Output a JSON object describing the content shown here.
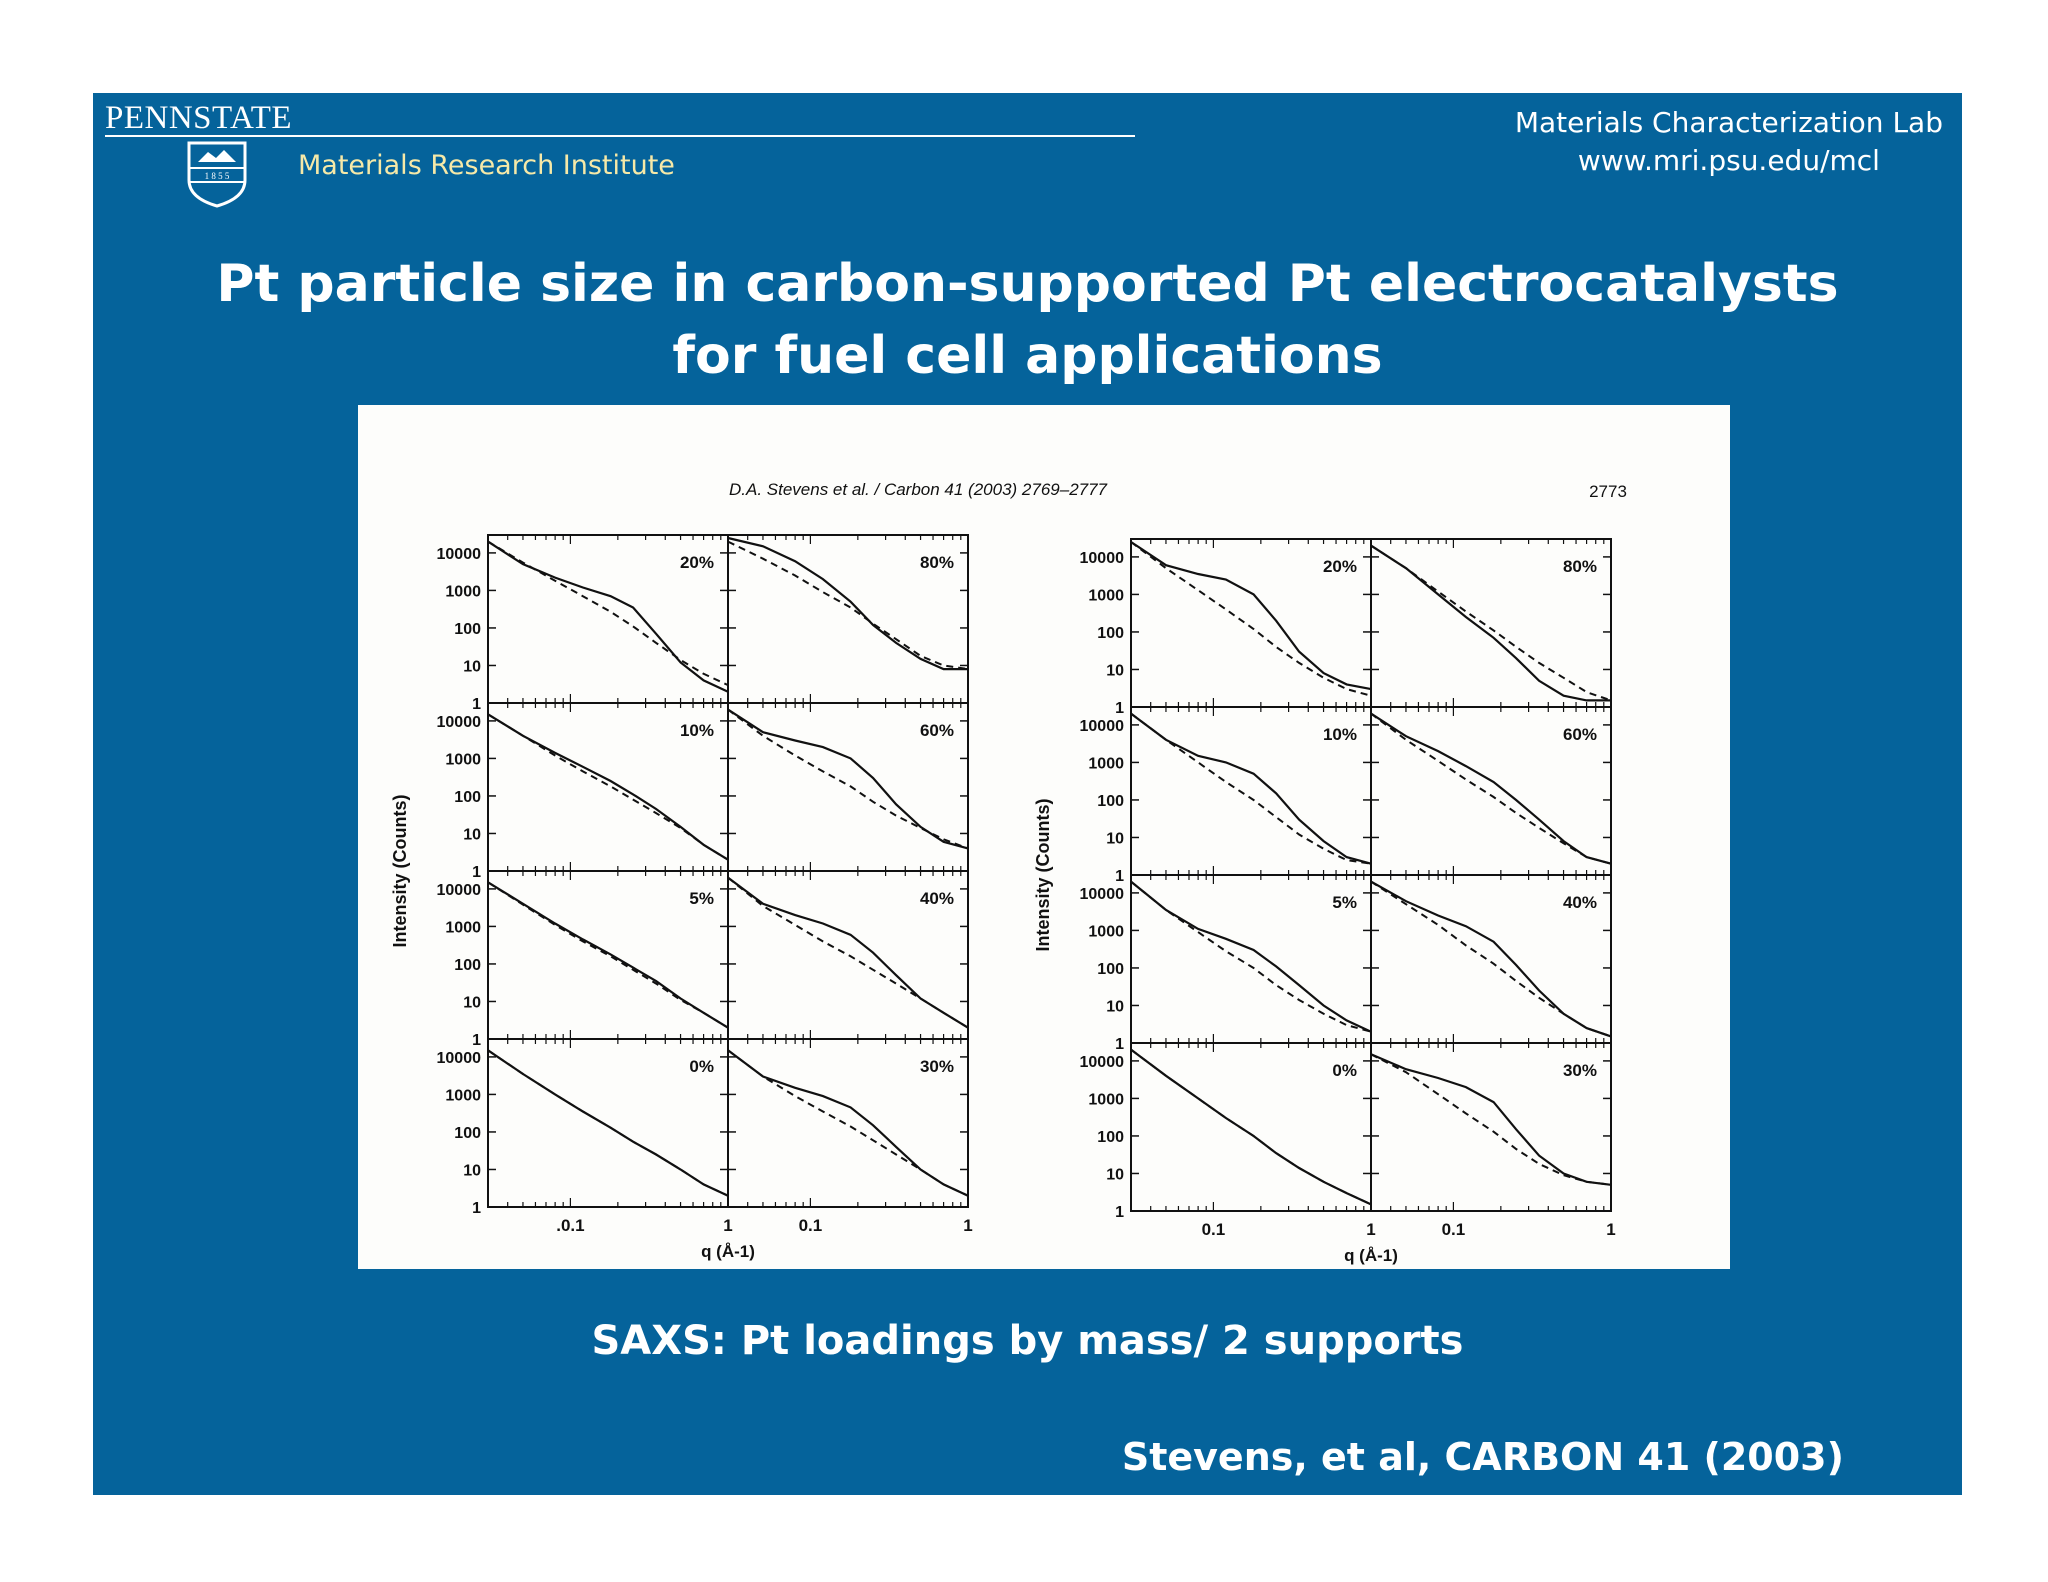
{
  "header": {
    "brand": "PENNSTATE",
    "shield_year": "1 8 5 5",
    "institute": "Materials Research Institute",
    "lab_name": "Materials Characterization Lab",
    "lab_url": "www.mri.psu.edu/mcl"
  },
  "slide": {
    "title_line1": "Pt particle size in carbon-supported Pt electrocatalysts",
    "title_line2": "for fuel cell applications",
    "caption": "SAXS: Pt loadings by mass/ 2 supports",
    "citation": "Stevens, et al, CARBON 41 (2003)"
  },
  "colors": {
    "slide_bg": "#05639b",
    "institute_text": "#f6e9a8"
  },
  "figure": {
    "header_citation": "D.A. Stevens et al. / Carbon 41 (2003) 2769–2777",
    "page_number": "2773"
  },
  "chart_data": [
    {
      "type": "line",
      "panel_group": "left figure (support 1)",
      "ylabel": "Intensity (Counts)",
      "xlabel": "q (Å-1)",
      "x_scale": "log",
      "y_scale": "log",
      "xlim": [
        0.03,
        1
      ],
      "ylim": [
        1,
        30000
      ],
      "y_ticks": [
        "10000",
        "1000",
        "100",
        "10",
        "1"
      ],
      "x_ticks": [
        ".0.1",
        "1"
      ],
      "x_ticks_right": [
        "0.1",
        "1"
      ],
      "panels": [
        {
          "label": "20%",
          "row": 0,
          "col": 0,
          "x": [
            0.03,
            0.05,
            0.08,
            0.12,
            0.18,
            0.25,
            0.35,
            0.5,
            0.7,
            1.0
          ],
          "solid": [
            20000,
            5000,
            2200,
            1200,
            700,
            350,
            70,
            12,
            4,
            2
          ],
          "dashed": [
            20000,
            5500,
            1800,
            700,
            270,
            110,
            40,
            14,
            6,
            3
          ]
        },
        {
          "label": "80%",
          "row": 0,
          "col": 1,
          "x": [
            0.03,
            0.05,
            0.08,
            0.12,
            0.18,
            0.25,
            0.35,
            0.5,
            0.7,
            1.0
          ],
          "solid": [
            25000,
            15000,
            6000,
            2000,
            500,
            120,
            40,
            15,
            8,
            8
          ],
          "dashed": [
            20000,
            7000,
            2500,
            900,
            350,
            130,
            50,
            18,
            10,
            8
          ]
        },
        {
          "label": "10%",
          "row": 1,
          "col": 0,
          "x": [
            0.03,
            0.05,
            0.08,
            0.12,
            0.18,
            0.25,
            0.35,
            0.5,
            0.7,
            1.0
          ],
          "solid": [
            15000,
            4000,
            1400,
            600,
            250,
            110,
            45,
            15,
            5,
            2
          ],
          "dashed": [
            15000,
            4000,
            1200,
            450,
            180,
            80,
            35,
            14,
            5,
            2
          ]
        },
        {
          "label": "60%",
          "row": 1,
          "col": 1,
          "x": [
            0.03,
            0.05,
            0.08,
            0.12,
            0.18,
            0.25,
            0.35,
            0.5,
            0.7,
            1.0
          ],
          "solid": [
            20000,
            5000,
            3000,
            2000,
            1000,
            300,
            60,
            15,
            6,
            4
          ],
          "dashed": [
            20000,
            4000,
            1200,
            450,
            180,
            70,
            30,
            14,
            7,
            4
          ]
        },
        {
          "label": "5%",
          "row": 2,
          "col": 0,
          "x": [
            0.03,
            0.05,
            0.08,
            0.12,
            0.18,
            0.25,
            0.35,
            0.5,
            0.7,
            1.0
          ],
          "solid": [
            15000,
            4000,
            1200,
            450,
            180,
            80,
            35,
            12,
            5,
            2
          ],
          "dashed": [
            15000,
            3800,
            1100,
            400,
            160,
            70,
            30,
            11,
            5,
            2
          ]
        },
        {
          "label": "40%",
          "row": 2,
          "col": 1,
          "x": [
            0.03,
            0.05,
            0.08,
            0.12,
            0.18,
            0.25,
            0.35,
            0.5,
            0.7,
            1.0
          ],
          "solid": [
            20000,
            4000,
            2000,
            1200,
            600,
            200,
            50,
            12,
            5,
            2
          ],
          "dashed": [
            20000,
            3500,
            1100,
            400,
            160,
            70,
            30,
            12,
            5,
            2
          ]
        },
        {
          "label": "0%",
          "row": 3,
          "col": 0,
          "x": [
            0.03,
            0.05,
            0.08,
            0.12,
            0.18,
            0.25,
            0.35,
            0.5,
            0.7,
            1.0
          ],
          "solid": [
            15000,
            3500,
            1000,
            350,
            130,
            55,
            25,
            10,
            4,
            2
          ],
          "dashed": [
            15000,
            3500,
            1000,
            350,
            130,
            55,
            25,
            10,
            4,
            2
          ]
        },
        {
          "label": "30%",
          "row": 3,
          "col": 1,
          "x": [
            0.03,
            0.05,
            0.08,
            0.12,
            0.18,
            0.25,
            0.35,
            0.5,
            0.7,
            1.0
          ],
          "solid": [
            15000,
            3000,
            1500,
            900,
            450,
            150,
            40,
            10,
            4,
            2
          ],
          "dashed": [
            15000,
            3000,
            900,
            350,
            140,
            60,
            25,
            10,
            4,
            2
          ]
        }
      ]
    },
    {
      "type": "line",
      "panel_group": "right figure (support 2)",
      "ylabel": "Intensity (Counts)",
      "xlabel": "q (Å-1)",
      "x_scale": "log",
      "y_scale": "log",
      "xlim": [
        0.03,
        1
      ],
      "ylim": [
        1,
        30000
      ],
      "y_ticks": [
        "10000",
        "1000",
        "100",
        "10",
        "1"
      ],
      "x_ticks": [
        "0.1",
        "1"
      ],
      "x_ticks_right": [
        "0.1",
        "1"
      ],
      "panels": [
        {
          "label": "20%",
          "row": 0,
          "col": 0,
          "x": [
            0.03,
            0.05,
            0.08,
            0.12,
            0.18,
            0.25,
            0.35,
            0.5,
            0.7,
            1.0
          ],
          "solid": [
            25000,
            6000,
            3500,
            2500,
            1000,
            200,
            30,
            8,
            4,
            3
          ],
          "dashed": [
            25000,
            5000,
            1300,
            400,
            120,
            40,
            15,
            6,
            3,
            2
          ]
        },
        {
          "label": "80%",
          "row": 0,
          "col": 1,
          "x": [
            0.03,
            0.05,
            0.08,
            0.12,
            0.18,
            0.25,
            0.35,
            0.5,
            0.7,
            1.0
          ],
          "solid": [
            20000,
            5000,
            1000,
            250,
            70,
            20,
            5,
            2,
            1.5,
            1.5
          ],
          "dashed": [
            20000,
            5000,
            1200,
            350,
            110,
            40,
            15,
            6,
            2.5,
            1.5
          ]
        },
        {
          "label": "10%",
          "row": 1,
          "col": 0,
          "x": [
            0.03,
            0.05,
            0.08,
            0.12,
            0.18,
            0.25,
            0.35,
            0.5,
            0.7,
            1.0
          ],
          "solid": [
            20000,
            4000,
            1500,
            1000,
            500,
            150,
            30,
            8,
            3,
            2
          ],
          "dashed": [
            20000,
            4000,
            1000,
            300,
            100,
            35,
            12,
            5,
            2.5,
            2
          ]
        },
        {
          "label": "60%",
          "row": 1,
          "col": 1,
          "x": [
            0.03,
            0.05,
            0.08,
            0.12,
            0.18,
            0.25,
            0.35,
            0.5,
            0.7,
            1.0
          ],
          "solid": [
            20000,
            5000,
            2000,
            800,
            300,
            100,
            30,
            8,
            3,
            2
          ],
          "dashed": [
            20000,
            4000,
            1100,
            350,
            120,
            45,
            18,
            7,
            3,
            2
          ]
        },
        {
          "label": "5%",
          "row": 2,
          "col": 0,
          "x": [
            0.03,
            0.05,
            0.08,
            0.12,
            0.18,
            0.25,
            0.35,
            0.5,
            0.7,
            1.0
          ],
          "solid": [
            20000,
            3500,
            1100,
            600,
            300,
            110,
            35,
            10,
            4,
            2
          ],
          "dashed": [
            20000,
            3500,
            900,
            280,
            100,
            35,
            14,
            6,
            3,
            2
          ]
        },
        {
          "label": "40%",
          "row": 2,
          "col": 1,
          "x": [
            0.03,
            0.05,
            0.08,
            0.12,
            0.18,
            0.25,
            0.35,
            0.5,
            0.7,
            1.0
          ],
          "solid": [
            20000,
            6000,
            2500,
            1300,
            500,
            120,
            25,
            6,
            2.5,
            1.5
          ],
          "dashed": [
            20000,
            5000,
            1400,
            400,
            130,
            45,
            16,
            6,
            2.5,
            1.5
          ]
        },
        {
          "label": "0%",
          "row": 3,
          "col": 0,
          "x": [
            0.03,
            0.05,
            0.08,
            0.12,
            0.18,
            0.25,
            0.35,
            0.5,
            0.7,
            1.0
          ],
          "solid": [
            20000,
            4000,
            1000,
            300,
            100,
            35,
            14,
            6,
            3,
            1.5
          ],
          "dashed": [
            20000,
            4000,
            1000,
            300,
            100,
            35,
            14,
            6,
            3,
            1.5
          ]
        },
        {
          "label": "30%",
          "row": 3,
          "col": 1,
          "x": [
            0.03,
            0.05,
            0.08,
            0.12,
            0.18,
            0.25,
            0.35,
            0.5,
            0.7,
            1.0
          ],
          "solid": [
            15000,
            6000,
            3500,
            2000,
            800,
            150,
            30,
            10,
            6,
            5
          ],
          "dashed": [
            15000,
            5000,
            1300,
            400,
            130,
            45,
            18,
            9,
            6,
            5
          ]
        }
      ]
    }
  ]
}
